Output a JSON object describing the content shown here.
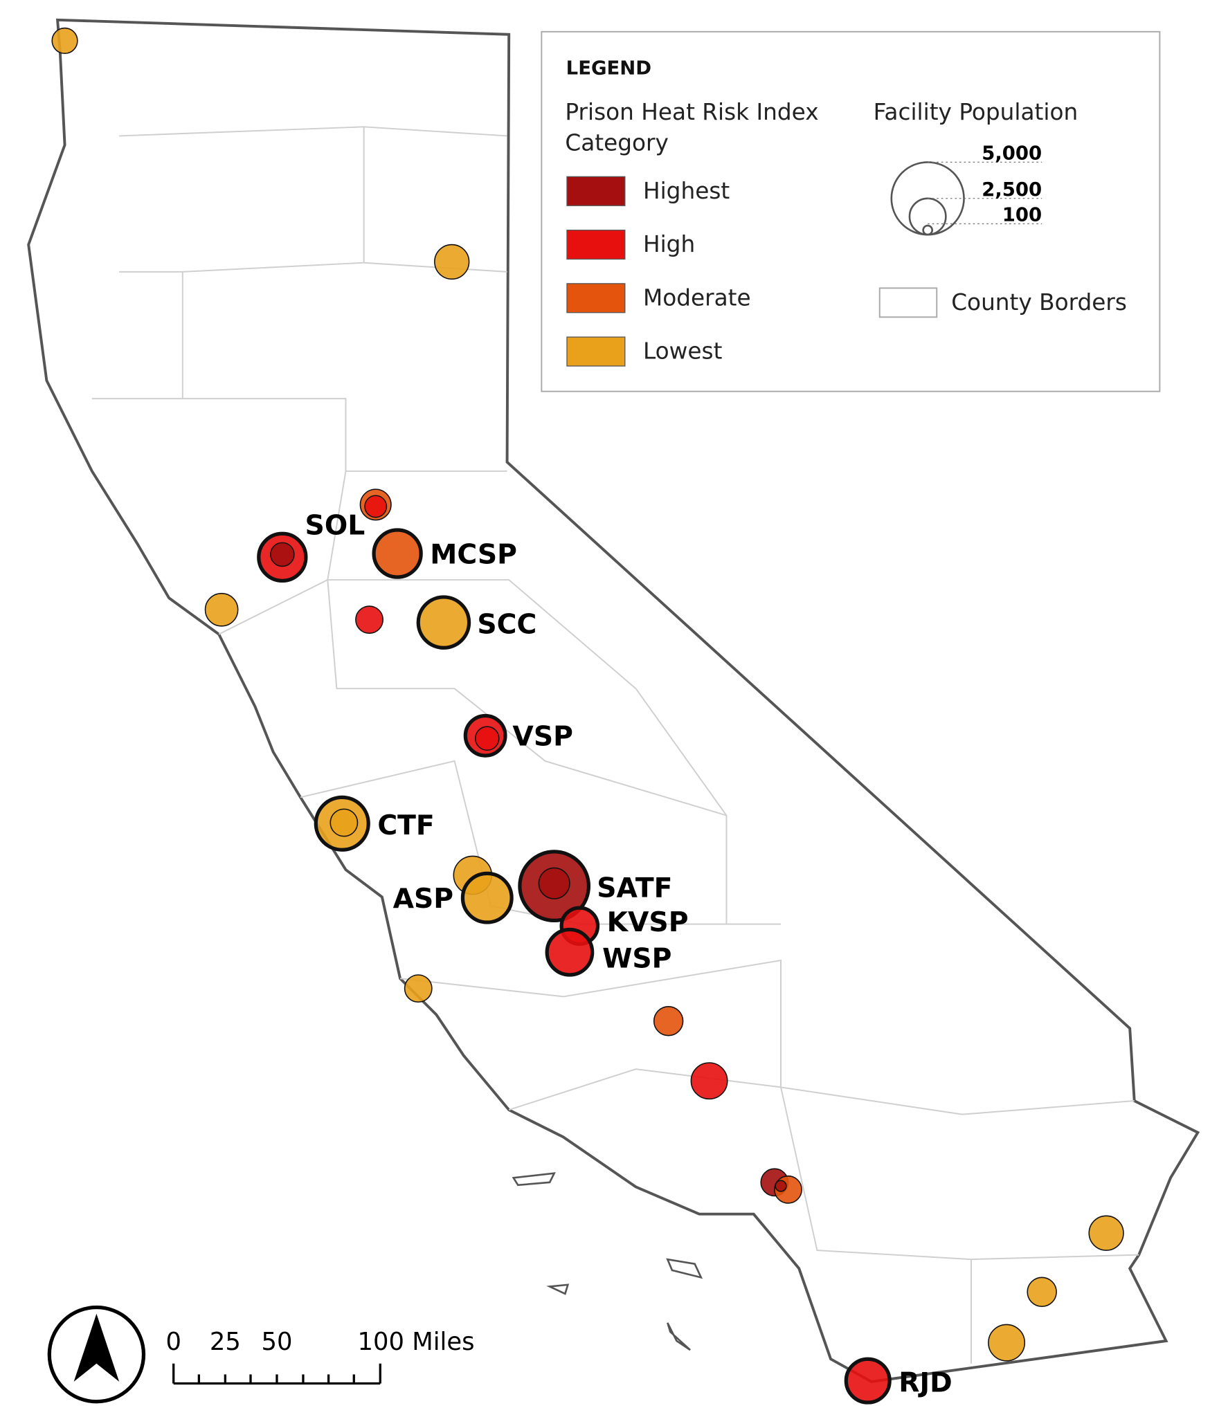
{
  "legend": {
    "title": "LEGEND",
    "color_heading": [
      "Prison Heat Risk Index",
      "Category"
    ],
    "categories": [
      {
        "label": "Highest",
        "color": "#a50f0f"
      },
      {
        "label": "High",
        "color": "#e8100f"
      },
      {
        "label": "Moderate",
        "color": "#e4540c"
      },
      {
        "label": "Lowest",
        "color": "#e9a11b"
      }
    ],
    "size_heading": "Facility Population",
    "size_labels": [
      "5,000",
      "2,500",
      "100"
    ],
    "county_borders": "County Borders"
  },
  "facilities": [
    "SOL",
    "MCSP",
    "SCC",
    "VSP",
    "CTF",
    "SATF",
    "ASP",
    "KVSP",
    "WSP",
    "RJD"
  ],
  "scale_bar": [
    "0",
    "25",
    "50",
    "100 Miles"
  ]
}
